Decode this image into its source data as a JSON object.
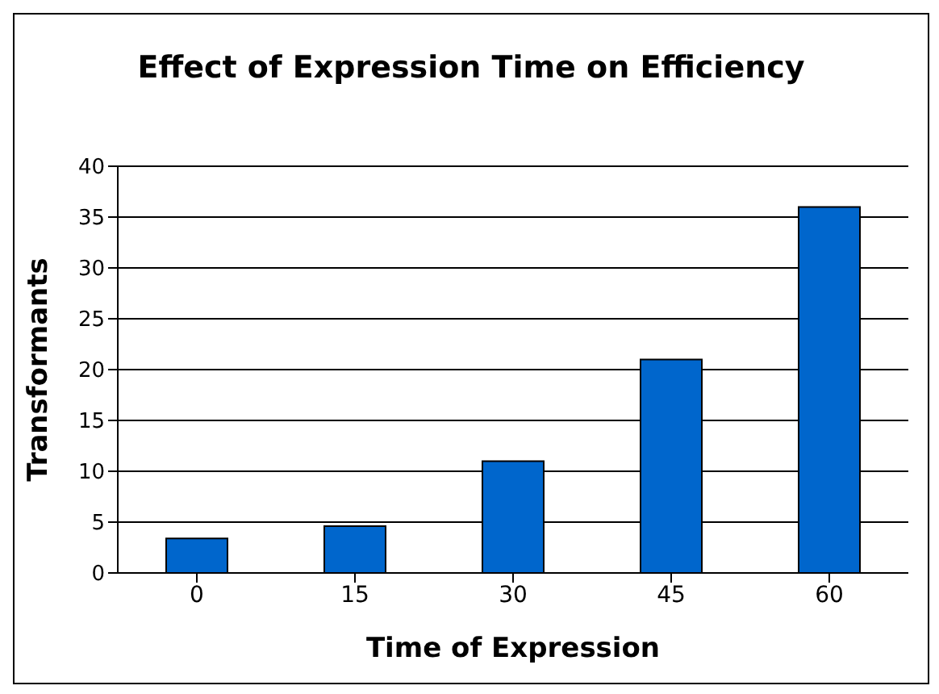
{
  "chart_data": {
    "type": "bar",
    "title": "Effect of Expression Time on Efficiency",
    "xlabel": "Time of Expression",
    "ylabel": "Transformants",
    "categories": [
      "0",
      "15",
      "30",
      "45",
      "60"
    ],
    "values": [
      3.4,
      4.6,
      11,
      21,
      36
    ],
    "color": "#0066cc",
    "ylim": [
      0,
      40
    ],
    "yticks": [
      0,
      5,
      10,
      15,
      20,
      25,
      30,
      35,
      40
    ],
    "grid": "y"
  }
}
